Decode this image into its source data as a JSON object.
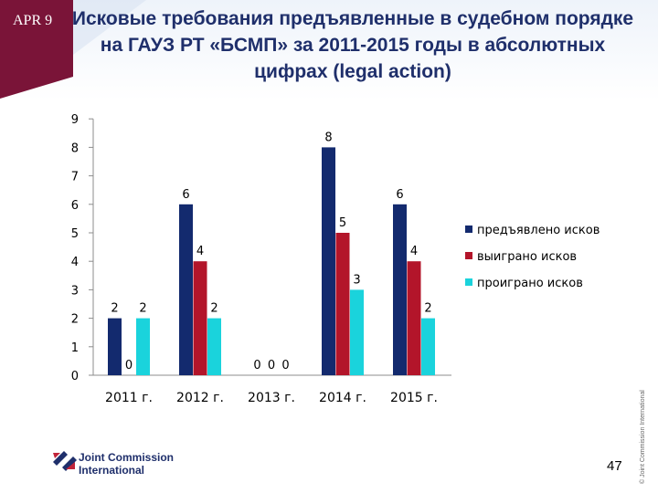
{
  "header": {
    "date_label": "APR 9",
    "title": "Исковые требования предъявленные в судебном порядке на ГАУЗ РТ «БСМП» за 2011-2015 годы в абсолютных цифрах (legal action)"
  },
  "footer": {
    "logo_line1": "Joint Commission",
    "logo_line2": "International",
    "page_number": "47",
    "copyright": "© Joint Commission International"
  },
  "colors": {
    "header_band": "#7a1438",
    "navy": "#132a6e",
    "red": "#b3152a",
    "cyan": "#1ad3dc"
  },
  "chart_data": {
    "type": "bar",
    "categories": [
      "2011 г.",
      "2012 г.",
      "2013 г.",
      "2014 г.",
      "2015 г."
    ],
    "series": [
      {
        "name": "предъявлено исков",
        "color": "#132a6e",
        "values": [
          2,
          6,
          0,
          8,
          6
        ]
      },
      {
        "name": "выиграно исков",
        "color": "#b3152a",
        "values": [
          0,
          4,
          0,
          5,
          4
        ]
      },
      {
        "name": "проиграно исков",
        "color": "#1ad3dc",
        "values": [
          2,
          2,
          0,
          3,
          2
        ]
      }
    ],
    "y_ticks": [
      "0",
      "1",
      "2",
      "3",
      "4",
      "5",
      "6",
      "7",
      "8",
      "9"
    ],
    "ylim": [
      0,
      9
    ],
    "legend_position": "right",
    "grid": false
  }
}
